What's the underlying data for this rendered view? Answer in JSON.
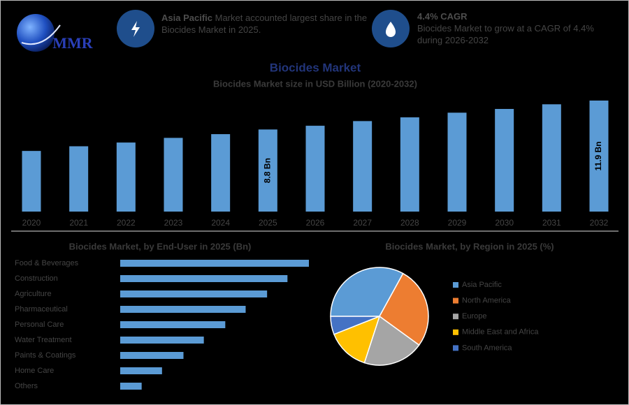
{
  "header": {
    "logo": "MMR",
    "info": [
      {
        "highlight": "Asia Pacific",
        "text": "Market accounted largest share in the Biocides Market in 2025."
      },
      {
        "highlight": "4.4% CAGR",
        "text": "Biocides Market to grow at a CAGR of 4.4% during 2026-2032"
      }
    ]
  },
  "chart_data": [
    {
      "type": "bar",
      "title": "Biocides Market",
      "subtitle": "Biocides Market size in USD Billion (2020-2032)",
      "categories": [
        "2020",
        "2021",
        "2022",
        "2023",
        "2024",
        "2025",
        "2026",
        "2027",
        "2028",
        "2029",
        "2030",
        "2031",
        "2032"
      ],
      "values": [
        6.5,
        7.0,
        7.4,
        7.9,
        8.3,
        8.8,
        9.2,
        9.7,
        10.1,
        10.6,
        11.0,
        11.5,
        11.9
      ],
      "value_labels": [
        null,
        null,
        null,
        null,
        null,
        "8.8 Bn",
        null,
        null,
        null,
        null,
        null,
        null,
        "11.9 Bn"
      ],
      "color": "#5b9bd5"
    },
    {
      "type": "hbar",
      "title": "Biocides Market, by End-User in 2025 (Bn)",
      "categories": [
        "Food & Beverages",
        "Construction",
        "Agriculture",
        "Pharmaceutical",
        "Personal Care",
        "Water Treatment",
        "Paints & Coatings",
        "Home Care",
        "Others"
      ],
      "values": [
        1.76,
        1.56,
        1.37,
        1.17,
        0.98,
        0.78,
        0.59,
        0.39,
        0.2
      ],
      "color": "#5b9bd5"
    },
    {
      "type": "pie",
      "title": "Biocides Market, by Region in 2025 (%)",
      "categories": [
        "Asia Pacific",
        "North America",
        "Europe",
        "Middle East and Africa",
        "South America"
      ],
      "values": [
        33,
        27,
        20,
        14,
        6
      ],
      "colors": [
        "#5b9bd5",
        "#ed7d31",
        "#a5a5a5",
        "#ffc000",
        "#4472c4"
      ]
    }
  ]
}
